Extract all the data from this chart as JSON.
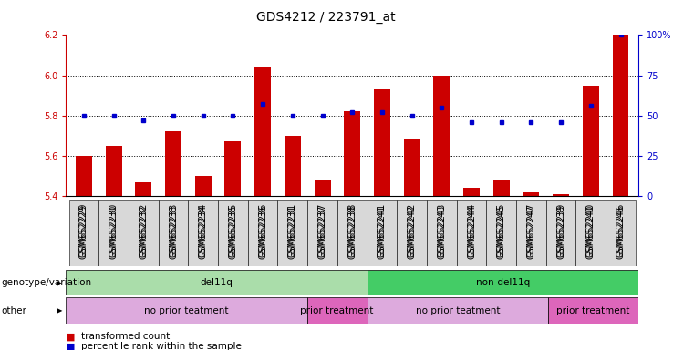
{
  "title": "GDS4212 / 223791_at",
  "samples": [
    "GSM652229",
    "GSM652230",
    "GSM652232",
    "GSM652233",
    "GSM652234",
    "GSM652235",
    "GSM652236",
    "GSM652231",
    "GSM652237",
    "GSM652238",
    "GSM652241",
    "GSM652242",
    "GSM652243",
    "GSM652244",
    "GSM652245",
    "GSM652247",
    "GSM652239",
    "GSM652240",
    "GSM652246"
  ],
  "red_values": [
    5.6,
    5.65,
    5.47,
    5.72,
    5.5,
    5.67,
    6.04,
    5.7,
    5.48,
    5.82,
    5.93,
    5.68,
    6.0,
    5.44,
    5.48,
    5.42,
    5.41,
    5.95,
    6.2
  ],
  "blue_percentile": [
    50,
    50,
    47,
    50,
    50,
    50,
    57,
    50,
    50,
    52,
    52,
    50,
    55,
    46,
    46,
    46,
    46,
    56,
    100
  ],
  "ylim_left": [
    5.4,
    6.2
  ],
  "ylim_right": [
    0,
    100
  ],
  "yticks_left": [
    5.4,
    5.6,
    5.8,
    6.0,
    6.2
  ],
  "yticks_right": [
    0,
    25,
    50,
    75,
    100
  ],
  "gridlines": [
    5.6,
    5.8,
    6.0
  ],
  "groups_genotype": [
    {
      "label": "del11q",
      "start": 0,
      "end": 9,
      "color": "#aaddaa"
    },
    {
      "label": "non-del11q",
      "start": 10,
      "end": 18,
      "color": "#44cc66"
    }
  ],
  "groups_other": [
    {
      "label": "no prior teatment",
      "start": 0,
      "end": 7,
      "color": "#ddaadd"
    },
    {
      "label": "prior treatment",
      "start": 8,
      "end": 9,
      "color": "#dd66bb"
    },
    {
      "label": "no prior teatment",
      "start": 10,
      "end": 15,
      "color": "#ddaadd"
    },
    {
      "label": "prior treatment",
      "start": 16,
      "end": 18,
      "color": "#dd66bb"
    }
  ],
  "bar_color": "#cc0000",
  "dot_color": "#0000cc",
  "bg_color": "#ffffff",
  "title_fontsize": 10,
  "tick_fontsize": 7,
  "label_fontsize": 7.5,
  "annot_fontsize": 7.5
}
